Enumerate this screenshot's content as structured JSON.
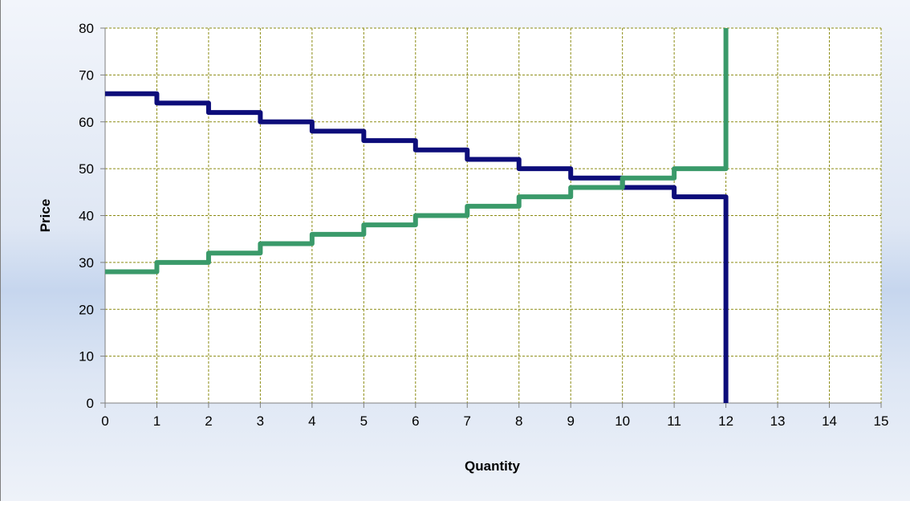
{
  "chart_data": {
    "type": "line",
    "title": "",
    "xlabel": "Quantity",
    "ylabel": "Price",
    "xlim": [
      0,
      15
    ],
    "ylim": [
      0,
      80
    ],
    "x_ticks": [
      0,
      1,
      2,
      3,
      4,
      5,
      6,
      7,
      8,
      9,
      10,
      11,
      12,
      13,
      14,
      15
    ],
    "y_ticks": [
      0,
      10,
      20,
      30,
      40,
      50,
      60,
      70,
      80
    ],
    "grid": true,
    "legend": "none",
    "step": "post",
    "series": [
      {
        "color": "#0d0d7a",
        "points": [
          [
            0,
            66
          ],
          [
            1,
            64
          ],
          [
            2,
            62
          ],
          [
            3,
            60
          ],
          [
            4,
            58
          ],
          [
            5,
            56
          ],
          [
            6,
            54
          ],
          [
            7,
            52
          ],
          [
            8,
            50
          ],
          [
            9,
            48
          ],
          [
            10,
            46
          ],
          [
            11,
            44
          ],
          [
            12,
            0
          ]
        ]
      },
      {
        "color": "#3a9a6a",
        "points": [
          [
            0,
            28
          ],
          [
            1,
            30
          ],
          [
            2,
            32
          ],
          [
            3,
            34
          ],
          [
            4,
            36
          ],
          [
            5,
            38
          ],
          [
            6,
            40
          ],
          [
            7,
            42
          ],
          [
            8,
            44
          ],
          [
            9,
            46
          ],
          [
            10,
            48
          ],
          [
            11,
            50
          ],
          [
            12,
            80
          ]
        ]
      }
    ],
    "colors": {
      "plot_background": "#ffffff",
      "grid": "#8c8c14",
      "axis": "#7f7f7f"
    }
  }
}
